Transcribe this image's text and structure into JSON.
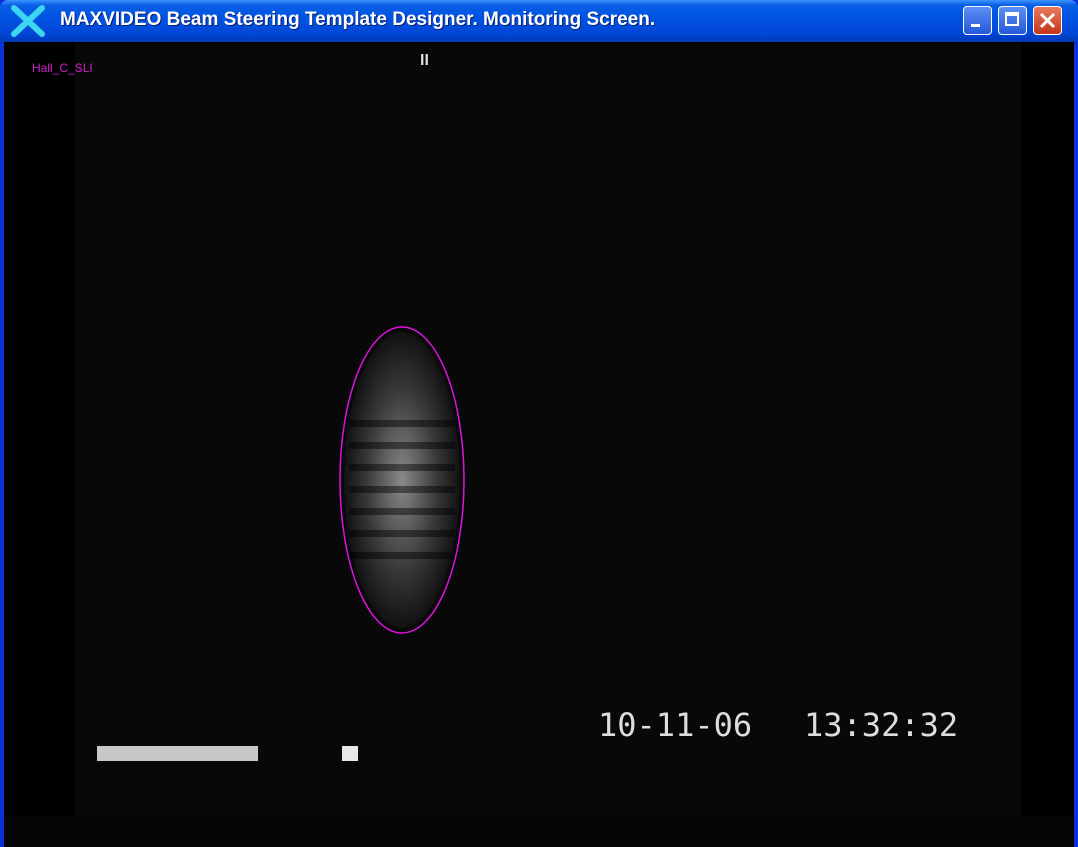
{
  "window": {
    "title": "MAXVIDEO Beam Steering Template Designer. Monitoring Screen."
  },
  "overlay": {
    "label": "Hall_C_SLI",
    "pause_marker": "II",
    "date": "10-11-06",
    "time": "13:32:32"
  }
}
